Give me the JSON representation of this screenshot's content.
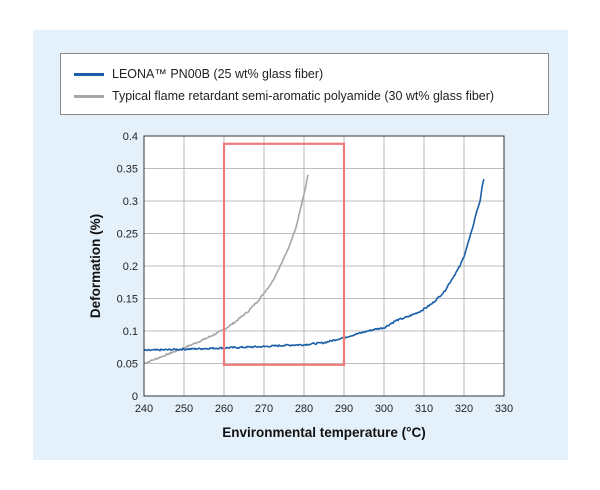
{
  "chart_data": {
    "type": "line",
    "title": "",
    "xlabel": "Environmental temperature (°C)",
    "ylabel": "Deformation (%)",
    "xlim": [
      240,
      330
    ],
    "ylim": [
      0,
      0.4
    ],
    "xticks": [
      "240",
      "250",
      "260",
      "270",
      "280",
      "290",
      "300",
      "310",
      "320",
      "330"
    ],
    "yticks": [
      "0",
      "0.05",
      "0.1",
      "0.15",
      "0.2",
      "0.25",
      "0.3",
      "0.35",
      "0.4"
    ],
    "grid": true,
    "legend_position": "top",
    "series": [
      {
        "name": "LEONA™ PN00B (25 wt% glass fiber)",
        "color": "#1a5ea8",
        "x": [
          240,
          245,
          250,
          255,
          260,
          265,
          270,
          275,
          280,
          285,
          290,
          293,
          296,
          298,
          300,
          303,
          306,
          309,
          312,
          315,
          317,
          319,
          320,
          321,
          322,
          323,
          324,
          324.5,
          325
        ],
        "y": [
          0.07,
          0.071,
          0.072,
          0.073,
          0.074,
          0.075,
          0.076,
          0.078,
          0.079,
          0.082,
          0.09,
          0.095,
          0.1,
          0.103,
          0.105,
          0.116,
          0.122,
          0.13,
          0.142,
          0.16,
          0.18,
          0.2,
          0.215,
          0.235,
          0.255,
          0.28,
          0.3,
          0.32,
          0.335
        ]
      },
      {
        "name": "Typical flame retardant semi-aromatic polyamide (30 wt% glass fiber)",
        "color": "#a6a6a6",
        "x": [
          240,
          245,
          250,
          255,
          260,
          263,
          266,
          269,
          272,
          274,
          276,
          278,
          279,
          280,
          281
        ],
        "y": [
          0.05,
          0.062,
          0.074,
          0.087,
          0.102,
          0.115,
          0.13,
          0.15,
          0.175,
          0.2,
          0.225,
          0.26,
          0.285,
          0.31,
          0.34
        ]
      }
    ],
    "annotations": [
      {
        "type": "rectangle",
        "color": "#f07a7a",
        "x0": 260,
        "x1": 290,
        "y0": 0.048,
        "y1": 0.388
      }
    ]
  }
}
